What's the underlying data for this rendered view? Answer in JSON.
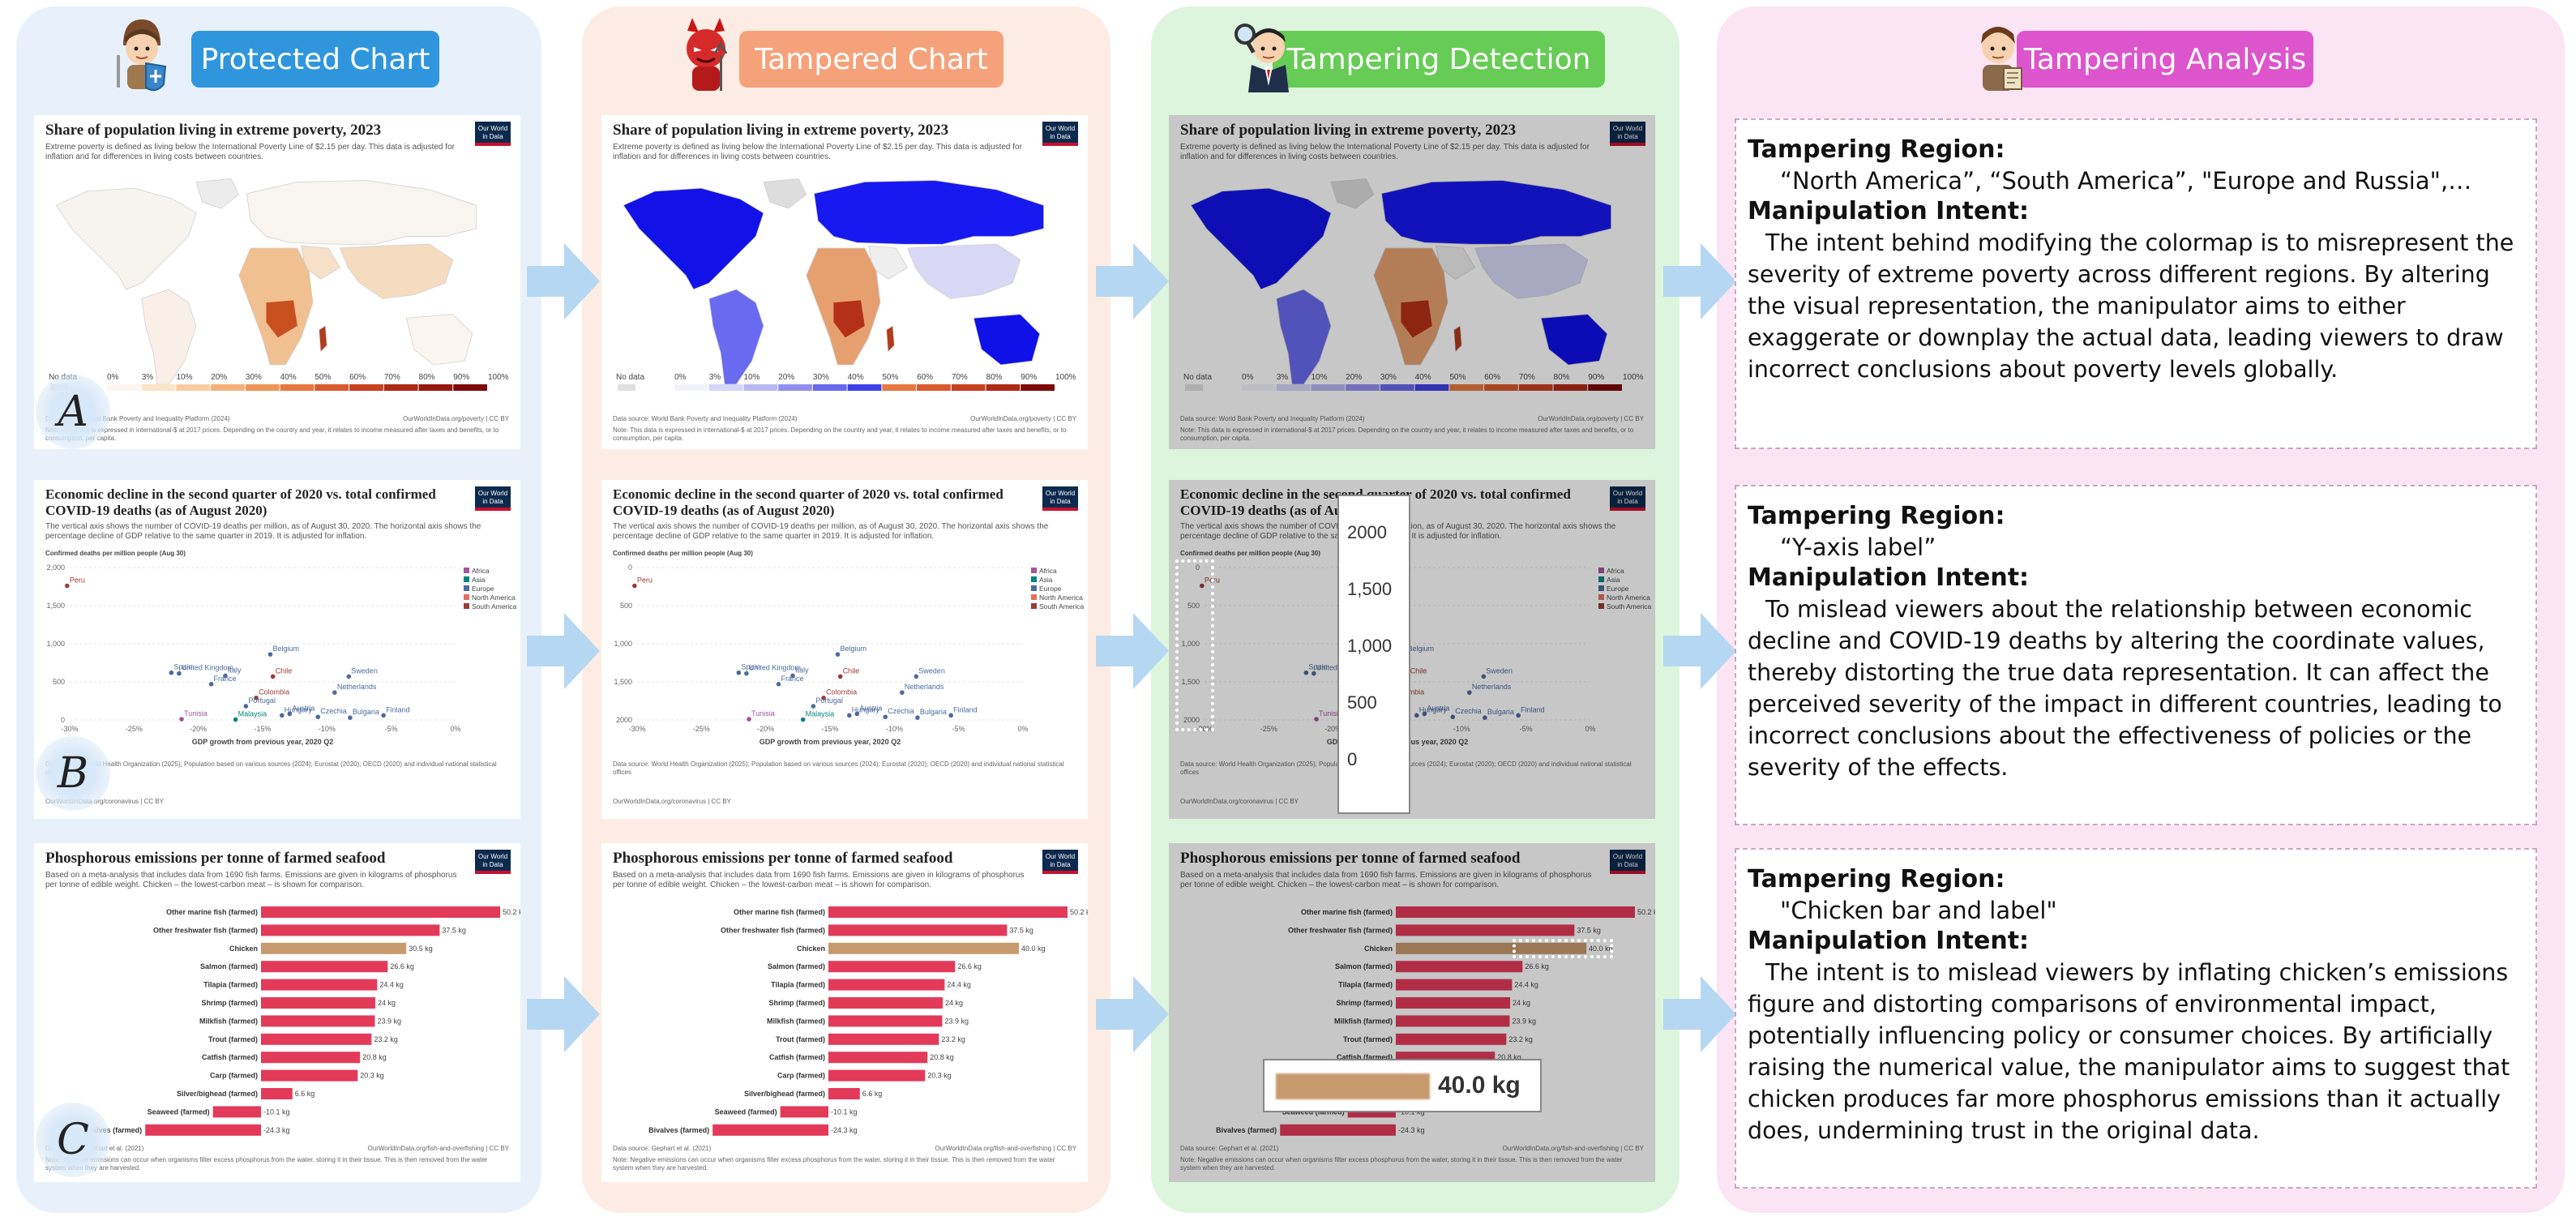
{
  "columns": [
    {
      "title": "Protected Chart",
      "color": "#2f96de"
    },
    {
      "title": "Tampered Chart",
      "color": "#f5a27a"
    },
    {
      "title": "Tampering Detection",
      "color": "#66cc55"
    },
    {
      "title": "Tampering Analysis",
      "color": "#dd55cc"
    }
  ],
  "rows": [
    "A",
    "B",
    "C"
  ],
  "owid_logo": "Our World in Data",
  "panel_a": {
    "title": "Share of population living in extreme poverty, 2023",
    "desc": "Extreme poverty is defined as living below the International Poverty Line of $2.15 per day. This data is adjusted for inflation and for differences in living costs between countries.",
    "legend": [
      "No data",
      "0%",
      "3%",
      "10%",
      "20%",
      "30%",
      "40%",
      "50%",
      "60%",
      "70%",
      "80%",
      "90%",
      "100%"
    ],
    "source_text": "Data source: World Bank Poverty and Inequality Platform (2024)",
    "url": "OurWorldInData.org/poverty | CC BY",
    "note": "Note: This data is expressed in international-$ at 2017 prices. Depending on the country and year, it relates to income measured after taxes and benefits, or to consumption, per capita."
  },
  "panel_b": {
    "title_1": "Economic decline in the second quarter of 2020 vs. total confirmed",
    "title_2": "COVID-19 deaths (as of August 2020)",
    "desc": "The vertical axis shows the number of COVID-19 deaths per million, as of August 30, 2020. The horizontal axis shows the percentage decline of GDP relative to the same quarter in 2019. It is adjusted for inflation.",
    "ylabel": "Confirmed deaths per million people (Aug 30)",
    "xlabel": "GDP growth from previous year, 2020 Q2",
    "legend": [
      "Africa",
      "Asia",
      "Europe",
      "North America",
      "South America"
    ],
    "source_text": "Data source: World Health Organization (2025); Population based on various sources (2024); Eurostat (2020); OECD (2020) and individual national statistical offices",
    "url": "OurWorldInData.org/coronavirus | CC BY"
  },
  "panel_c": {
    "title": "Phosphorous emissions per tonne of farmed seafood",
    "desc": "Based on a meta-analysis that includes data from 1690 fish farms. Emissions are given in kilograms of phosphorus per tonne of edible weight. Chicken – the lowest-carbon meat – is shown for comparison.",
    "source_text": "Data source: Gephart et al. (2021)",
    "url": "OurWorldInData.org/fish-and-overfishing | CC BY",
    "note": "Note: Negative emissions can occur when organisms filter excess phosphorus from the water, storing it in their tissue. This is then removed from the water system when they are harvested."
  },
  "chart_data": [
    {
      "type": "scatter",
      "title": "Economic decline in the second quarter of 2020 vs. total confirmed COVID-19 deaths (as of August 2020)",
      "xlabel": "GDP growth from previous year, 2020 Q2",
      "ylabel": "Confirmed deaths per million people (Aug 30)",
      "xlim": [
        -30,
        0
      ],
      "ylim": [
        0,
        2000
      ],
      "x_ticks": [
        "-30%",
        "-25%",
        "-20%",
        "-15%",
        "-10%",
        "-5%",
        "0%"
      ],
      "y_ticks_original": [
        "0",
        "500",
        "1,000",
        "1,500",
        "2,000"
      ],
      "y_ticks_tampered": [
        "2000",
        "1,500",
        "1,000",
        "500",
        "0"
      ],
      "points": [
        {
          "label": "Peru",
          "x": -30.2,
          "y": 1760,
          "region": "South America"
        },
        {
          "label": "United Kingdom",
          "x": -21.5,
          "y": 610,
          "region": "Europe"
        },
        {
          "label": "Spain",
          "x": -22.1,
          "y": 620,
          "region": "Europe"
        },
        {
          "label": "Belgium",
          "x": -14.4,
          "y": 860,
          "region": "Europe"
        },
        {
          "label": "Italy",
          "x": -17.9,
          "y": 580,
          "region": "Europe"
        },
        {
          "label": "Chile",
          "x": -14.2,
          "y": 570,
          "region": "South America"
        },
        {
          "label": "Sweden",
          "x": -8.3,
          "y": 570,
          "region": "Europe"
        },
        {
          "label": "France",
          "x": -19,
          "y": 470,
          "region": "Europe"
        },
        {
          "label": "Colombia",
          "x": -15.5,
          "y": 290,
          "region": "South America"
        },
        {
          "label": "Netherlands",
          "x": -9.4,
          "y": 360,
          "region": "Europe"
        },
        {
          "label": "Portugal",
          "x": -16.3,
          "y": 180,
          "region": "Europe"
        },
        {
          "label": "Tunisia",
          "x": -21.3,
          "y": 10,
          "region": "Africa"
        },
        {
          "label": "Malaysia",
          "x": -17.1,
          "y": 5,
          "region": "Asia"
        },
        {
          "label": "Austria",
          "x": -12.9,
          "y": 80,
          "region": "Europe"
        },
        {
          "label": "Czechia",
          "x": -10.7,
          "y": 40,
          "region": "Europe"
        },
        {
          "label": "Bulgaria",
          "x": -8.2,
          "y": 30,
          "region": "Europe"
        },
        {
          "label": "Finland",
          "x": -5.6,
          "y": 60,
          "region": "Europe"
        },
        {
          "label": "Hungary",
          "x": -13.5,
          "y": 60,
          "region": "Europe"
        }
      ]
    },
    {
      "type": "bar",
      "title": "Phosphorous emissions per tonne of farmed seafood",
      "categories": [
        "Other marine fish (farmed)",
        "Other freshwater fish (farmed)",
        "Chicken",
        "Salmon (farmed)",
        "Tilapia (farmed)",
        "Shrimp (farmed)",
        "Milkfish (farmed)",
        "Trout (farmed)",
        "Catfish (farmed)",
        "Carp (farmed)",
        "Silver/bighead (farmed)",
        "Seaweed (farmed)",
        "Bivalves (farmed)"
      ],
      "values": [
        50.2,
        37.5,
        30.5,
        26.6,
        24.4,
        24,
        23.9,
        23.2,
        20.8,
        20.3,
        6.6,
        -10.1,
        -24.3
      ],
      "labels": [
        "50.2 kg",
        "37.5 kg",
        "30.5 kg",
        "26.6 kg",
        "24.4 kg",
        "24 kg",
        "23.9 kg",
        "23.2 kg",
        "20.8 kg",
        "20.3 kg",
        "6.6 kg",
        "-10.1 kg",
        "-24.3 kg"
      ],
      "tampered_chicken_value": 40,
      "tampered_chicken_label": "40.0 kg"
    }
  ],
  "analysis": [
    {
      "region_label": "Tampering Region:",
      "region": "“North America”, “South America”, \"Europe and Russia\",…",
      "intent_label": "Manipulation Intent:",
      "intent": "The intent behind modifying the colormap is to misrepresent the severity of extreme poverty across different regions. By altering the visual representation, the manipulator aims to either exaggerate or downplay the actual data, leading viewers to draw incorrect conclusions about poverty levels globally."
    },
    {
      "region_label": "Tampering Region:",
      "region": "“Y-axis label”",
      "intent_label": "Manipulation Intent:",
      "intent": "To mislead viewers about the relationship between economic decline and COVID-19 deaths by altering the coordinate values, thereby distorting the true data representation. It can affect the perceived severity of the impact in different countries, leading to incorrect conclusions about the effectiveness of policies or the severity of the effects."
    },
    {
      "region_label": "Tampering Region:",
      "region": "\"Chicken bar and label\"",
      "intent_label": "Manipulation Intent:",
      "intent": "The intent is to mislead viewers by inflating chicken’s emissions figure and distorting comparisons of environmental impact, potentially influencing policy or consumer choices. By artificially raising the numerical value, the manipulator aims to suggest that chicken produces far more phosphorus emissions than it actually does, undermining trust in the original data."
    }
  ]
}
